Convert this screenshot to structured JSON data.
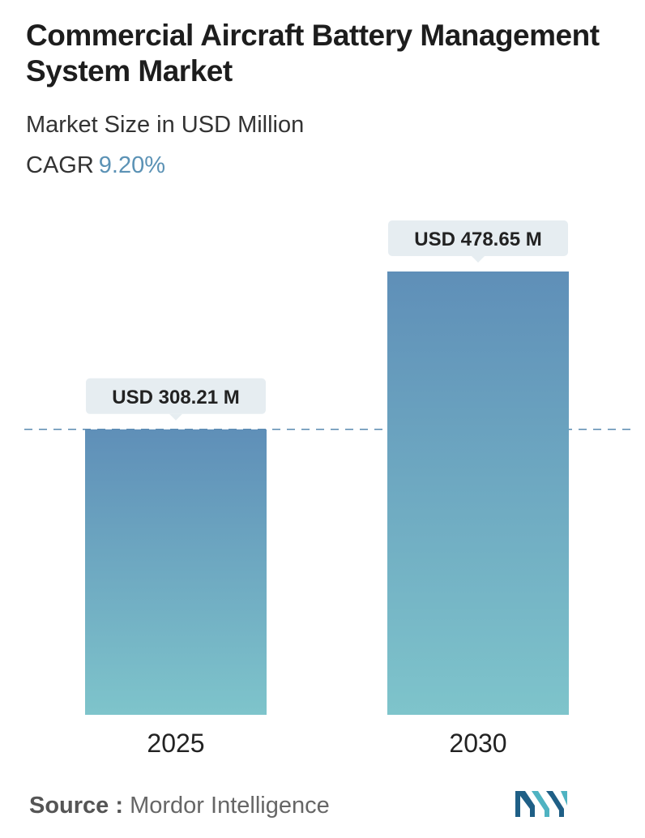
{
  "header": {
    "title": "Commercial Aircraft Battery Management System Market",
    "subtitle": "Market Size in USD Million",
    "cagr_label": "CAGR",
    "cagr_value": "9.20%"
  },
  "chart_data": {
    "type": "bar",
    "categories": [
      "2025",
      "2030"
    ],
    "values": [
      308.21,
      478.65
    ],
    "data_labels": [
      "USD 308.21 M",
      "USD 478.65 M"
    ],
    "title": "Commercial Aircraft Battery Management System Market",
    "xlabel": "",
    "ylabel": "",
    "grid": false,
    "reference_line": 308.21
  },
  "footer": {
    "source_label": "Source :",
    "source_value": "Mordor Intelligence"
  },
  "colors": {
    "bar_top": "#5f8fb8",
    "bar_bottom": "#7ec4cb",
    "cagr_accent": "#5b92b5",
    "reference_line": "#5a8ab0",
    "label_bg": "#e6edf1",
    "logo_dark": "#1f5f86",
    "logo_light": "#4fb3c2"
  },
  "icons": {
    "logo": "mordor-intelligence-logo"
  }
}
